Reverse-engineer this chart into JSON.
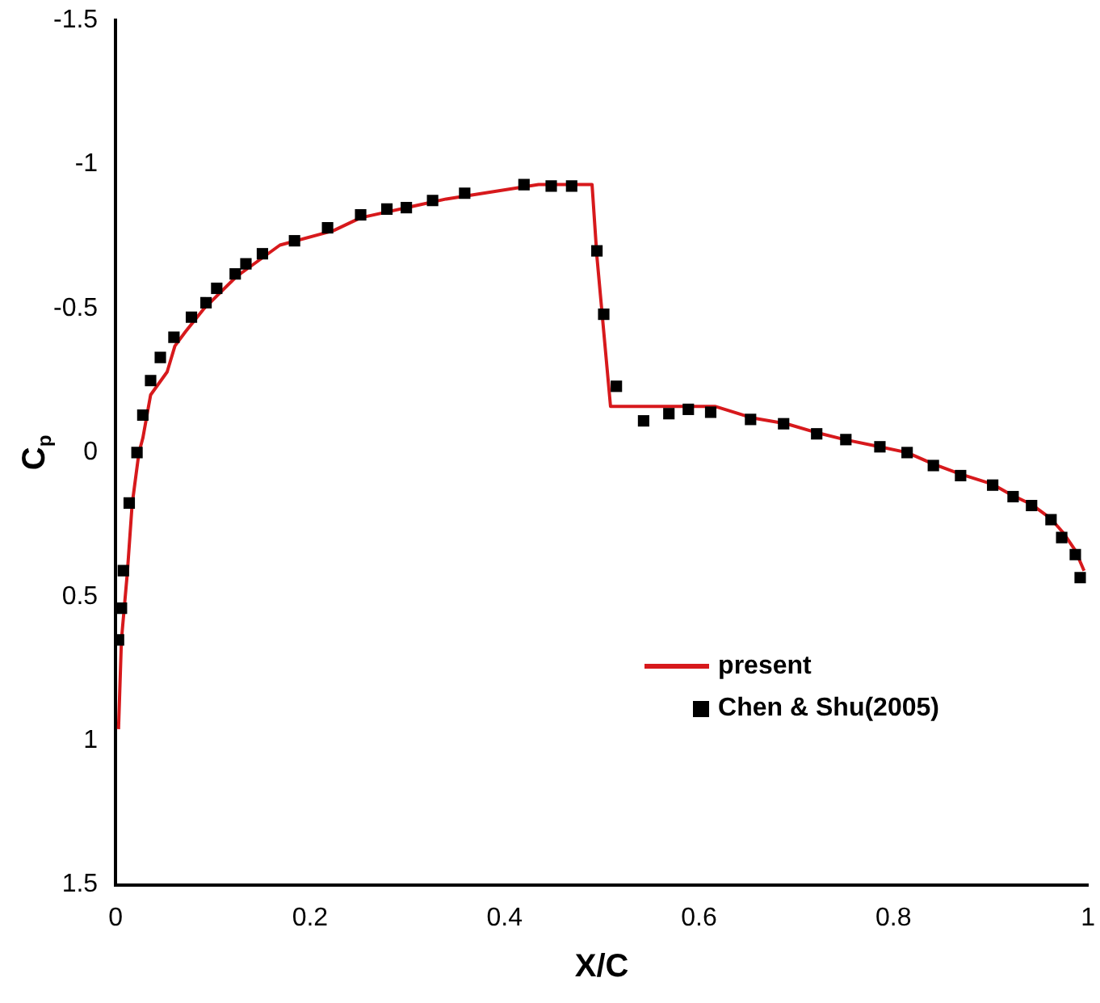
{
  "chart_data": {
    "type": "line",
    "xlabel": "X/C",
    "ylabel": "C$_{p}$",
    "xlim": [
      0,
      1
    ],
    "xticks": [
      0,
      0.2,
      0.4,
      0.6,
      0.8,
      1
    ],
    "ylim": [
      1.5,
      -1.5
    ],
    "yticks": [
      -1.5,
      -1,
      -0.5,
      0,
      0.5,
      1,
      1.5
    ],
    "grid": false,
    "legend": "bottom right",
    "series": [
      {
        "name": "present",
        "color": "#d7191c",
        "marker": "none",
        "line_style": "solid",
        "x": [
          0.003,
          0.006,
          0.012,
          0.017,
          0.024,
          0.028,
          0.036,
          0.053,
          0.061,
          0.072,
          0.091,
          0.124,
          0.169,
          0.224,
          0.252,
          0.34,
          0.435,
          0.49,
          0.495,
          0.509,
          0.562,
          0.617,
          0.655,
          0.69,
          0.72,
          0.75,
          0.786,
          0.814,
          0.841,
          0.869,
          0.902,
          0.923,
          0.942,
          0.962,
          0.975,
          0.987,
          0.996
        ],
        "values": [
          0.96,
          0.65,
          0.42,
          0.18,
          0.0,
          -0.05,
          -0.2,
          -0.28,
          -0.37,
          -0.42,
          -0.5,
          -0.61,
          -0.72,
          -0.77,
          -0.815,
          -0.88,
          -0.93,
          -0.93,
          -0.68,
          -0.16,
          -0.16,
          -0.16,
          -0.12,
          -0.1,
          -0.07,
          -0.045,
          -0.02,
          0.0,
          0.04,
          0.075,
          0.11,
          0.15,
          0.18,
          0.23,
          0.28,
          0.34,
          0.41
        ]
      },
      {
        "name": "Chen & Shu(2005)",
        "type": "scatter",
        "color": "#000000",
        "marker": "square",
        "x": [
          0.003,
          0.006,
          0.008,
          0.014,
          0.022,
          0.028,
          0.036,
          0.046,
          0.06,
          0.078,
          0.093,
          0.104,
          0.123,
          0.134,
          0.151,
          0.184,
          0.218,
          0.252,
          0.279,
          0.299,
          0.326,
          0.359,
          0.42,
          0.448,
          0.469,
          0.495,
          0.502,
          0.515,
          0.543,
          0.569,
          0.589,
          0.612,
          0.653,
          0.687,
          0.721,
          0.751,
          0.786,
          0.814,
          0.841,
          0.869,
          0.902,
          0.923,
          0.942,
          0.962,
          0.973,
          0.987,
          0.992
        ],
        "values": [
          0.65,
          0.54,
          0.41,
          0.175,
          0.0,
          -0.13,
          -0.25,
          -0.33,
          -0.4,
          -0.47,
          -0.52,
          -0.57,
          -0.62,
          -0.655,
          -0.69,
          -0.735,
          -0.78,
          -0.825,
          -0.845,
          -0.85,
          -0.875,
          -0.9,
          -0.93,
          -0.925,
          -0.925,
          -0.7,
          -0.48,
          -0.23,
          -0.11,
          -0.135,
          -0.15,
          -0.14,
          -0.115,
          -0.1,
          -0.065,
          -0.045,
          -0.02,
          0.0,
          0.045,
          0.08,
          0.113,
          0.153,
          0.184,
          0.233,
          0.295,
          0.354,
          0.434
        ]
      }
    ]
  }
}
